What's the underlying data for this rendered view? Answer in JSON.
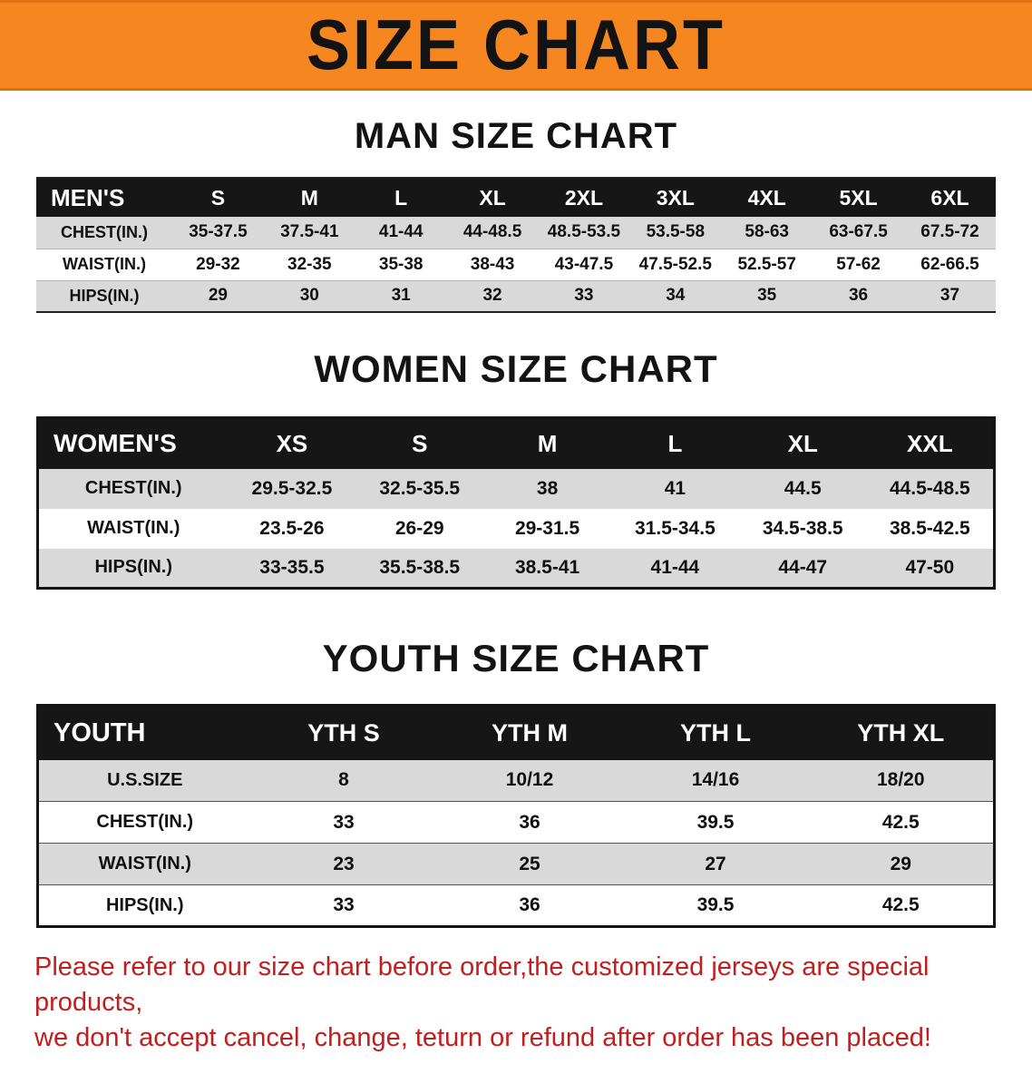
{
  "banner": {
    "title": "SIZE CHART",
    "bg_color": "#f6861f",
    "text_color": "#131313"
  },
  "sections": [
    {
      "heading": "MAN SIZE CHART",
      "table": {
        "header": [
          "MEN'S",
          "S",
          "M",
          "L",
          "XL",
          "2XL",
          "3XL",
          "4XL",
          "5XL",
          "6XL"
        ],
        "rows": [
          [
            "CHEST(IN.)",
            "35-37.5",
            "37.5-41",
            "41-44",
            "44-48.5",
            "48.5-53.5",
            "53.5-58",
            "58-63",
            "63-67.5",
            "67.5-72"
          ],
          [
            "WAIST(IN.)",
            "29-32",
            "32-35",
            "35-38",
            "38-43",
            "43-47.5",
            "47.5-52.5",
            "52.5-57",
            "57-62",
            "62-66.5"
          ],
          [
            "HIPS(IN.)",
            "29",
            "30",
            "31",
            "32",
            "33",
            "34",
            "35",
            "36",
            "37"
          ]
        ]
      }
    },
    {
      "heading": "WOMEN SIZE CHART",
      "table": {
        "header": [
          "WOMEN'S",
          "XS",
          "S",
          "M",
          "L",
          "XL",
          "XXL"
        ],
        "rows": [
          [
            "CHEST(IN.)",
            "29.5-32.5",
            "32.5-35.5",
            "38",
            "41",
            "44.5",
            "44.5-48.5"
          ],
          [
            "WAIST(IN.)",
            "23.5-26",
            "26-29",
            "29-31.5",
            "31.5-34.5",
            "34.5-38.5",
            "38.5-42.5"
          ],
          [
            "HIPS(IN.)",
            "33-35.5",
            "35.5-38.5",
            "38.5-41",
            "41-44",
            "44-47",
            "47-50"
          ]
        ]
      }
    },
    {
      "heading": "YOUTH SIZE CHART",
      "table": {
        "header": [
          "YOUTH",
          "YTH S",
          "YTH M",
          "YTH L",
          "YTH XL"
        ],
        "rows": [
          [
            "U.S.SIZE",
            "8",
            "10/12",
            "14/16",
            "18/20"
          ],
          [
            "CHEST(IN.)",
            "33",
            "36",
            "39.5",
            "42.5"
          ],
          [
            "WAIST(IN.)",
            "23",
            "25",
            "27",
            "29"
          ],
          [
            "HIPS(IN.)",
            "33",
            "36",
            "39.5",
            "42.5"
          ]
        ]
      }
    }
  ],
  "disclaimer": {
    "lines": [
      "Please refer to our size chart before order,the customized jerseys are special products,",
      "we don't accept cancel, change, teturn or refund after order has been placed!"
    ],
    "text_color": "#c21e1e"
  }
}
